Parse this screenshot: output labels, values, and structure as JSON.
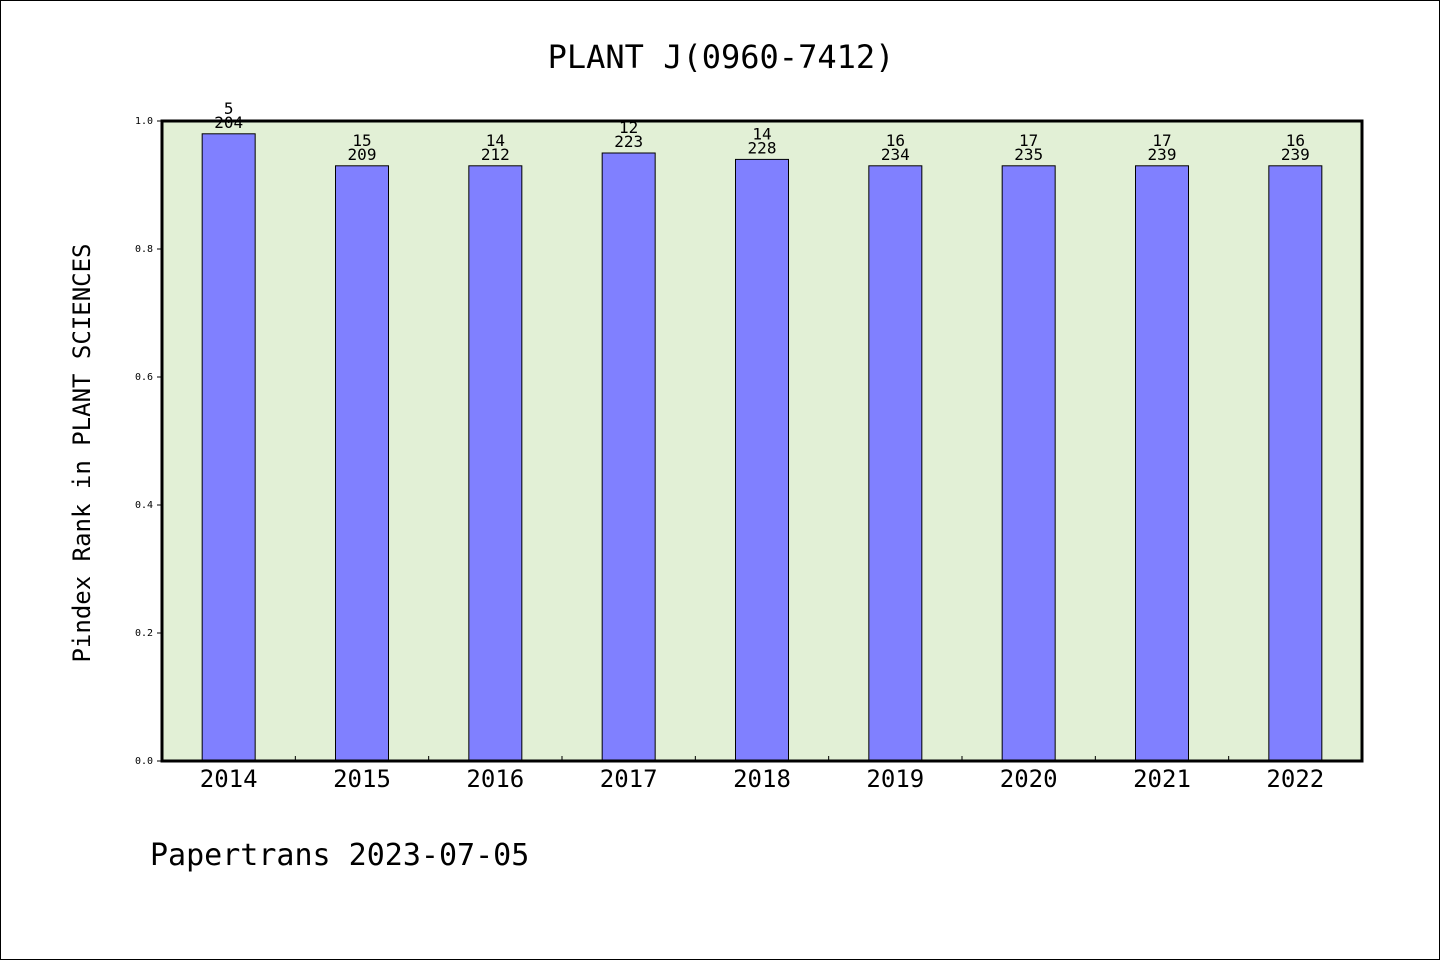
{
  "chart_data": {
    "type": "bar",
    "title": "PLANT J(0960-7412)",
    "xlabel": "",
    "ylabel": "Pindex Rank in PLANT SCIENCES",
    "categories": [
      "2014",
      "2015",
      "2016",
      "2017",
      "2018",
      "2019",
      "2020",
      "2021",
      "2022"
    ],
    "values": [
      0.98,
      0.93,
      0.93,
      0.95,
      0.94,
      0.93,
      0.93,
      0.93,
      0.93
    ],
    "rank_labels": [
      "5",
      "15",
      "14",
      "12",
      "14",
      "16",
      "17",
      "17",
      "16"
    ],
    "total_labels": [
      "204",
      "209",
      "212",
      "223",
      "228",
      "234",
      "235",
      "239",
      "239"
    ],
    "ylim": [
      0,
      1.0
    ],
    "yticks": [
      "0.0",
      "0.2",
      "0.4",
      "0.6",
      "0.8",
      "1.0"
    ],
    "ytick_values": [
      0.0,
      0.2,
      0.4,
      0.6,
      0.8,
      1.0
    ],
    "grid": false,
    "colors": {
      "bar": "#8080ff",
      "plot_background": "#e2f0d6",
      "axis": "#000000"
    }
  },
  "footer": "Papertrans 2023-07-05"
}
